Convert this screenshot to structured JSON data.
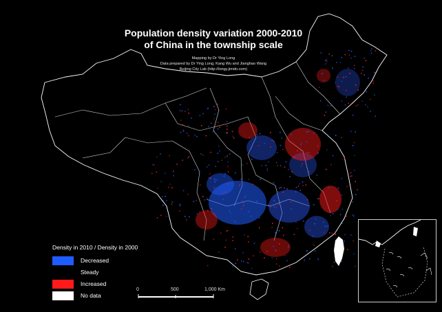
{
  "title": {
    "line1": "Population density variation 2000-2010",
    "line2": "of China in the township scale"
  },
  "credits": [
    "Mapping by Dr Ying Long",
    "Data prepared by Dr Ying Long, Kang Wu and Jianghao Wang",
    "Beijing City Lab (http://longy.jimdo.com)"
  ],
  "legend": {
    "title": "Density in 2010 / Density in 2000",
    "items": [
      {
        "label": "Decreased",
        "color": "#1f5cff"
      },
      {
        "label": "Steady",
        "color": "#000000"
      },
      {
        "label": "Increased",
        "color": "#ff1a1a"
      },
      {
        "label": "No data",
        "color": "#ffffff"
      }
    ]
  },
  "scale_bar": {
    "ticks": [
      "0",
      "500",
      "1,000 Km"
    ]
  },
  "colors": {
    "background": "#000000",
    "boundary": "#ffffff",
    "decreased": "#1f5cff",
    "increased": "#ff1a1a",
    "no_data": "#ffffff"
  },
  "features": {
    "main_map": "china-township-map",
    "inset": "south-china-sea-inset",
    "islands": [
      "taiwan",
      "hainan"
    ]
  }
}
